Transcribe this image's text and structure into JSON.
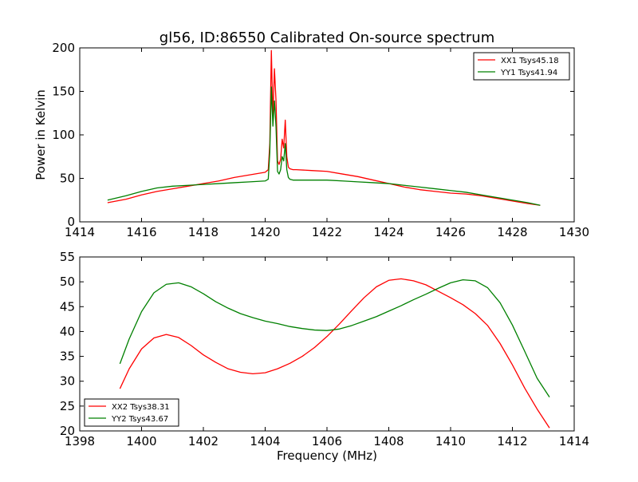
{
  "figure": {
    "title": "gl56, ID:86550 Calibrated On-source spectrum"
  },
  "chart_data": [
    {
      "type": "line",
      "title": "gl56, ID:86550 Calibrated On-source spectrum",
      "xlabel": "",
      "ylabel": "Power in Kelvin",
      "xlim": [
        1414,
        1430
      ],
      "ylim": [
        0,
        200
      ],
      "xticks": [
        1414,
        1416,
        1418,
        1420,
        1422,
        1424,
        1426,
        1428,
        1430
      ],
      "yticks": [
        0,
        50,
        100,
        150,
        200
      ],
      "grid": false,
      "legend": "top-right",
      "series": [
        {
          "name": "XX1 Tsys45.18",
          "color": "#ff0000",
          "x": [
            1414.9,
            1415.5,
            1416,
            1416.5,
            1417,
            1417.5,
            1418,
            1418.5,
            1419,
            1419.5,
            1420,
            1420.1,
            1420.15,
            1420.2,
            1420.25,
            1420.3,
            1420.35,
            1420.4,
            1420.45,
            1420.5,
            1420.55,
            1420.6,
            1420.65,
            1420.7,
            1420.75,
            1420.8,
            1420.9,
            1421,
            1421.5,
            1422,
            1422.5,
            1423,
            1423.5,
            1424,
            1424.5,
            1425,
            1425.5,
            1426,
            1426.5,
            1427,
            1427.5,
            1428,
            1428.5,
            1428.9
          ],
          "y": [
            22,
            26,
            31,
            35,
            38,
            41,
            44,
            47,
            51,
            54,
            57,
            60,
            90,
            197,
            120,
            176,
            140,
            70,
            66,
            72,
            95,
            85,
            117,
            75,
            63,
            61,
            60,
            60,
            59,
            58,
            55,
            52,
            48,
            44,
            40,
            37,
            35,
            33,
            32,
            30,
            27,
            24,
            21,
            19
          ]
        },
        {
          "name": "YY1 Tsys41.94",
          "color": "#008000",
          "x": [
            1414.9,
            1415.5,
            1416,
            1416.5,
            1417,
            1417.5,
            1418,
            1418.5,
            1419,
            1419.5,
            1420,
            1420.1,
            1420.15,
            1420.2,
            1420.25,
            1420.3,
            1420.35,
            1420.4,
            1420.45,
            1420.5,
            1420.55,
            1420.6,
            1420.65,
            1420.7,
            1420.75,
            1420.8,
            1420.9,
            1421,
            1421.5,
            1422,
            1422.5,
            1423,
            1423.5,
            1424,
            1424.5,
            1425,
            1425.5,
            1426,
            1426.5,
            1427,
            1427.5,
            1428,
            1428.5,
            1428.9
          ],
          "y": [
            25,
            30,
            35,
            39,
            41,
            42,
            43,
            44,
            45,
            46,
            47,
            49,
            80,
            155,
            110,
            139,
            110,
            58,
            55,
            60,
            75,
            70,
            90,
            60,
            51,
            49,
            48,
            48,
            48,
            48,
            47,
            46,
            45,
            44,
            42,
            40,
            38,
            36,
            34,
            31,
            28,
            25,
            22,
            19
          ]
        }
      ]
    },
    {
      "type": "line",
      "title": "",
      "xlabel": "Frequency (MHz)",
      "ylabel": "",
      "xlim": [
        1398,
        1414
      ],
      "ylim": [
        20,
        55
      ],
      "xticks": [
        1398,
        1400,
        1402,
        1404,
        1406,
        1408,
        1410,
        1412,
        1414
      ],
      "yticks": [
        20,
        25,
        30,
        35,
        40,
        45,
        50,
        55
      ],
      "grid": false,
      "legend": "bottom-left",
      "series": [
        {
          "name": "XX2 Tsys38.31",
          "color": "#ff0000",
          "x": [
            1399.3,
            1399.6,
            1400,
            1400.4,
            1400.8,
            1401.2,
            1401.6,
            1402,
            1402.4,
            1402.8,
            1403.2,
            1403.6,
            1404,
            1404.4,
            1404.8,
            1405.2,
            1405.6,
            1406,
            1406.4,
            1406.8,
            1407.2,
            1407.6,
            1408,
            1408.4,
            1408.8,
            1409.2,
            1409.6,
            1410,
            1410.4,
            1410.8,
            1411.2,
            1411.6,
            1412,
            1412.4,
            1412.8,
            1413.2
          ],
          "y": [
            28.5,
            32.5,
            36.5,
            38.7,
            39.4,
            38.8,
            37.2,
            35.3,
            33.8,
            32.5,
            31.8,
            31.5,
            31.7,
            32.5,
            33.6,
            35.0,
            36.8,
            39.0,
            41.5,
            44.2,
            46.8,
            49.0,
            50.3,
            50.6,
            50.2,
            49.4,
            48.1,
            46.8,
            45.4,
            43.6,
            41.2,
            37.6,
            33.3,
            28.6,
            24.4,
            20.6
          ]
        },
        {
          "name": "YY2 Tsys43.67",
          "color": "#008000",
          "x": [
            1399.3,
            1399.6,
            1400,
            1400.4,
            1400.8,
            1401.2,
            1401.6,
            1402,
            1402.4,
            1402.8,
            1403.2,
            1403.6,
            1404,
            1404.4,
            1404.8,
            1405.2,
            1405.6,
            1406,
            1406.4,
            1406.8,
            1407.2,
            1407.6,
            1408,
            1408.4,
            1408.8,
            1409.2,
            1409.6,
            1410,
            1410.4,
            1410.8,
            1411.2,
            1411.6,
            1412,
            1412.4,
            1412.8,
            1413.2
          ],
          "y": [
            33.5,
            38.5,
            44.0,
            47.8,
            49.5,
            49.8,
            49.0,
            47.6,
            46.0,
            44.7,
            43.6,
            42.8,
            42.1,
            41.6,
            41.0,
            40.6,
            40.3,
            40.2,
            40.5,
            41.2,
            42.1,
            43.0,
            44.1,
            45.2,
            46.4,
            47.5,
            48.7,
            49.8,
            50.4,
            50.2,
            48.8,
            45.8,
            41.3,
            36.0,
            30.6,
            26.8
          ]
        }
      ]
    }
  ]
}
